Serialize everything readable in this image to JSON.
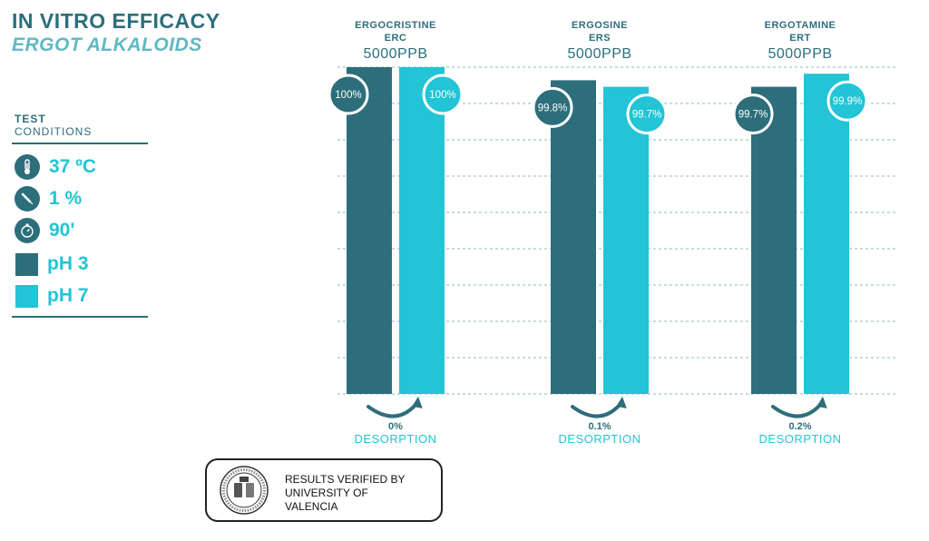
{
  "title": "IN VITRO EFFICACY",
  "subtitle": "ERGOT ALKALOIDS",
  "conditions": {
    "heading_bold": "TEST",
    "heading": "CONDITIONS",
    "items": [
      {
        "icon": "thermometer-icon",
        "text": "37 ºC"
      },
      {
        "icon": "dropper-icon",
        "text": "1 %"
      },
      {
        "icon": "stopwatch-icon",
        "text": "90'"
      }
    ],
    "legend": [
      {
        "label": "pH 3",
        "color": "#2d6e7b"
      },
      {
        "label": "pH 7",
        "color": "#22c4d6"
      }
    ]
  },
  "badge": {
    "text_lines": [
      "RESULTS VERIFIED BY",
      "UNIVERSITY OF",
      "VALENCIA"
    ]
  },
  "chart_data": {
    "type": "bar",
    "categories": [
      {
        "name": "ERGOCRISTINE",
        "code": "ERC",
        "concentration": "5000PPB",
        "desorption_value": "0%",
        "desorption_label": "DESORPTION"
      },
      {
        "name": "ERGOSINE",
        "code": "ERS",
        "concentration": "5000PPB",
        "desorption_value": "0.1%",
        "desorption_label": "DESORPTION"
      },
      {
        "name": "ERGOTAMINE",
        "code": "ERT",
        "concentration": "5000PPB",
        "desorption_value": "0.2%",
        "desorption_label": "DESORPTION"
      }
    ],
    "series": [
      {
        "name": "pH 3",
        "color": "#2d6e7b",
        "values": [
          100,
          99.8,
          99.7
        ],
        "labels": [
          "100%",
          "99.8%",
          "99.7%"
        ]
      },
      {
        "name": "pH 7",
        "color": "#22c4d6",
        "values": [
          100,
          99.7,
          99.9
        ],
        "labels": [
          "100%",
          "99.7%",
          "99.9%"
        ]
      }
    ],
    "ylim": [
      0,
      100
    ],
    "grid": true
  }
}
